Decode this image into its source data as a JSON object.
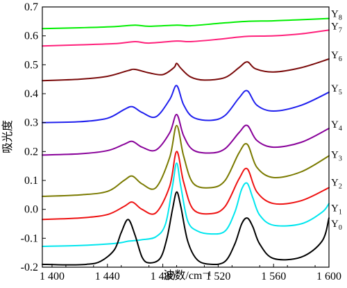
{
  "chart_data": {
    "type": "line",
    "title": "",
    "xlabel": "波数/cm⁻¹",
    "ylabel": "吸光度",
    "xlim": [
      1393,
      1600
    ],
    "ylim": [
      -0.2,
      0.7
    ],
    "x_ticks": [
      1400,
      1440,
      1480,
      1520,
      1560,
      1600
    ],
    "x_tick_labels": [
      "1 400",
      "1 440",
      "1 480",
      "1 520",
      "1 560",
      "1 600"
    ],
    "y_ticks": [
      -0.2,
      -0.1,
      0.0,
      0.1,
      0.2,
      0.3,
      0.4,
      0.5,
      0.6,
      0.7
    ],
    "y_tick_labels": [
      "-0.2",
      "-0.1",
      "0.0",
      "0.1",
      "0.2",
      "0.3",
      "0.4",
      "0.5",
      "0.6",
      "0.7"
    ],
    "grid": false,
    "legend": "series labels at right end of each line",
    "series": [
      {
        "name": "Y8",
        "color": "#00ee00",
        "x": [
          1393,
          1420,
          1445,
          1460,
          1470,
          1490,
          1500,
          1520,
          1540,
          1560,
          1580,
          1600
        ],
        "y": [
          0.625,
          0.628,
          0.632,
          0.637,
          0.633,
          0.637,
          0.635,
          0.643,
          0.65,
          0.652,
          0.656,
          0.66
        ]
      },
      {
        "name": "Y7",
        "color": "#ff1f7a",
        "x": [
          1393,
          1420,
          1445,
          1460,
          1470,
          1490,
          1500,
          1520,
          1540,
          1560,
          1580,
          1600
        ],
        "y": [
          0.565,
          0.569,
          0.573,
          0.58,
          0.575,
          0.582,
          0.58,
          0.588,
          0.598,
          0.6,
          0.607,
          0.62
        ]
      },
      {
        "name": "Y6",
        "color": "#7a0a0a",
        "x": [
          1393,
          1420,
          1440,
          1455,
          1460,
          1470,
          1480,
          1488,
          1490,
          1493,
          1500,
          1510,
          1525,
          1535,
          1541,
          1547,
          1560,
          1580,
          1600
        ],
        "y": [
          0.445,
          0.45,
          0.46,
          0.48,
          0.484,
          0.472,
          0.466,
          0.49,
          0.505,
          0.488,
          0.458,
          0.447,
          0.456,
          0.49,
          0.51,
          0.486,
          0.475,
          0.49,
          0.52
        ]
      },
      {
        "name": "Y5",
        "color": "#1f1fee",
        "x": [
          1393,
          1420,
          1440,
          1452,
          1458,
          1465,
          1475,
          1485,
          1490,
          1495,
          1502,
          1515,
          1525,
          1535,
          1541,
          1548,
          1560,
          1580,
          1600
        ],
        "y": [
          0.3,
          0.303,
          0.315,
          0.345,
          0.355,
          0.335,
          0.32,
          0.38,
          0.428,
          0.362,
          0.318,
          0.308,
          0.325,
          0.385,
          0.41,
          0.36,
          0.34,
          0.36,
          0.405
        ]
      },
      {
        "name": "Y4",
        "color": "#880099",
        "x": [
          1393,
          1420,
          1440,
          1452,
          1458,
          1465,
          1475,
          1485,
          1490,
          1495,
          1502,
          1515,
          1525,
          1535,
          1541,
          1548,
          1560,
          1580,
          1600
        ],
        "y": [
          0.188,
          0.192,
          0.203,
          0.225,
          0.235,
          0.215,
          0.205,
          0.265,
          0.328,
          0.255,
          0.205,
          0.195,
          0.21,
          0.265,
          0.29,
          0.238,
          0.215,
          0.232,
          0.28
        ]
      },
      {
        "name": "Y3",
        "color": "#7a7a00",
        "x": [
          1393,
          1420,
          1440,
          1452,
          1458,
          1465,
          1475,
          1485,
          1490,
          1495,
          1502,
          1515,
          1525,
          1535,
          1541,
          1548,
          1560,
          1580,
          1600
        ],
        "y": [
          0.045,
          0.05,
          0.062,
          0.1,
          0.115,
          0.088,
          0.075,
          0.18,
          0.29,
          0.185,
          0.09,
          0.075,
          0.1,
          0.195,
          0.225,
          0.145,
          0.11,
          0.13,
          0.185
        ]
      },
      {
        "name": "Y2",
        "color": "#ee1111",
        "x": [
          1393,
          1420,
          1440,
          1452,
          1458,
          1465,
          1475,
          1485,
          1490,
          1495,
          1502,
          1515,
          1525,
          1535,
          1541,
          1548,
          1560,
          1580,
          1600
        ],
        "y": [
          -0.035,
          -0.03,
          -0.018,
          0.01,
          0.025,
          0.0,
          -0.012,
          0.08,
          0.2,
          0.095,
          0.0,
          -0.015,
          0.01,
          0.105,
          0.14,
          0.06,
          0.02,
          0.03,
          0.075
        ]
      },
      {
        "name": "Y1",
        "color": "#00e6ee",
        "x": [
          1393,
          1420,
          1440,
          1450,
          1455,
          1460,
          1465,
          1475,
          1482,
          1487,
          1490,
          1493,
          1498,
          1505,
          1515,
          1525,
          1532,
          1537,
          1541,
          1545,
          1550,
          1560,
          1580,
          1595,
          1600
        ],
        "y": [
          -0.128,
          -0.125,
          -0.12,
          -0.115,
          -0.11,
          -0.108,
          -0.105,
          -0.095,
          -0.05,
          0.08,
          0.16,
          0.08,
          -0.04,
          -0.075,
          -0.085,
          -0.075,
          -0.01,
          0.07,
          0.09,
          0.04,
          -0.02,
          -0.055,
          -0.05,
          -0.01,
          0.02
        ]
      },
      {
        "name": "Y0",
        "color": "#000000",
        "x": [
          1393,
          1410,
          1425,
          1435,
          1445,
          1450,
          1455,
          1460,
          1465,
          1470,
          1478,
          1483,
          1487,
          1490,
          1493,
          1498,
          1505,
          1515,
          1525,
          1532,
          1537,
          1541,
          1545,
          1550,
          1560,
          1580,
          1595,
          1600
        ],
        "y": [
          -0.19,
          -0.192,
          -0.19,
          -0.18,
          -0.14,
          -0.08,
          -0.035,
          -0.09,
          -0.165,
          -0.185,
          -0.17,
          -0.1,
          0.0,
          0.06,
          0.01,
          -0.11,
          -0.175,
          -0.19,
          -0.18,
          -0.12,
          -0.05,
          -0.03,
          -0.06,
          -0.12,
          -0.17,
          -0.165,
          -0.11,
          -0.03
        ]
      }
    ]
  }
}
